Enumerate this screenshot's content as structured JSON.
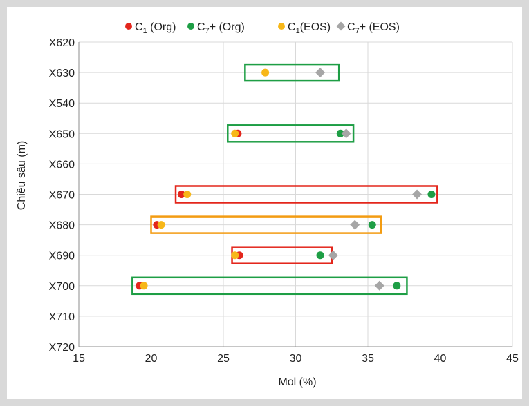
{
  "chart_data": {
    "type": "scatter",
    "xlabel": "Mol (%)",
    "ylabel": "Chiều sâu (m)",
    "xlim": [
      15,
      45
    ],
    "x_ticks": [
      15,
      20,
      25,
      30,
      35,
      40,
      45
    ],
    "categories": [
      "X620",
      "X630",
      "X540",
      "X650",
      "X660",
      "X670",
      "X680",
      "X690",
      "X700",
      "X710",
      "X720"
    ],
    "grid": true,
    "legend_position": "top",
    "legend": [
      {
        "base": "C",
        "sub": "1",
        "suffix": " (Org)",
        "color": "#e3261c",
        "marker": "circle"
      },
      {
        "base": "C",
        "sub": "7",
        "suffix": "+ (Org)",
        "color": "#1e9e45",
        "marker": "circle"
      },
      {
        "base": "C",
        "sub": "1",
        "suffix": "(EOS)",
        "color": "#f7b718",
        "marker": "circle"
      },
      {
        "base": "C",
        "sub": "7",
        "suffix": "+ (EOS)",
        "color": "#a6a6a6",
        "marker": "diamond"
      }
    ],
    "series": [
      {
        "name": "C1 (Org)",
        "color": "#e3261c",
        "marker": "circle",
        "points": [
          {
            "depth": "X650",
            "x": 26.0
          },
          {
            "depth": "X670",
            "x": 22.1
          },
          {
            "depth": "X680",
            "x": 20.4
          },
          {
            "depth": "X690",
            "x": 26.1
          },
          {
            "depth": "X700",
            "x": 19.2
          }
        ]
      },
      {
        "name": "C7+ (Org)",
        "color": "#1e9e45",
        "marker": "circle",
        "points": [
          {
            "depth": "X650",
            "x": 33.1
          },
          {
            "depth": "X670",
            "x": 39.4
          },
          {
            "depth": "X680",
            "x": 35.3
          },
          {
            "depth": "X690",
            "x": 31.7
          },
          {
            "depth": "X700",
            "x": 37.0
          }
        ]
      },
      {
        "name": "C1 (EOS)",
        "color": "#f7b718",
        "marker": "circle",
        "points": [
          {
            "depth": "X630",
            "x": 27.9
          },
          {
            "depth": "X650",
            "x": 25.8
          },
          {
            "depth": "X670",
            "x": 22.5
          },
          {
            "depth": "X680",
            "x": 20.7
          },
          {
            "depth": "X690",
            "x": 25.8
          },
          {
            "depth": "X700",
            "x": 19.5
          }
        ]
      },
      {
        "name": "C7+ (EOS)",
        "color": "#a6a6a6",
        "marker": "diamond",
        "points": [
          {
            "depth": "X630",
            "x": 31.7
          },
          {
            "depth": "X650",
            "x": 33.5
          },
          {
            "depth": "X670",
            "x": 38.4
          },
          {
            "depth": "X680",
            "x": 34.1
          },
          {
            "depth": "X690",
            "x": 32.6
          },
          {
            "depth": "X700",
            "x": 35.8
          }
        ]
      }
    ],
    "boxes": [
      {
        "depth": "X630",
        "x_from": 26.5,
        "x_to": 33.0,
        "color": "#1e9e45"
      },
      {
        "depth": "X650",
        "x_from": 25.3,
        "x_to": 34.0,
        "color": "#1e9e45"
      },
      {
        "depth": "X670",
        "x_from": 21.7,
        "x_to": 39.8,
        "color": "#e3261c"
      },
      {
        "depth": "X680",
        "x_from": 20.0,
        "x_to": 35.9,
        "color": "#f39c12"
      },
      {
        "depth": "X690",
        "x_from": 25.6,
        "x_to": 32.5,
        "color": "#e3261c"
      },
      {
        "depth": "X700",
        "x_from": 18.7,
        "x_to": 37.7,
        "color": "#1e9e45"
      }
    ]
  }
}
